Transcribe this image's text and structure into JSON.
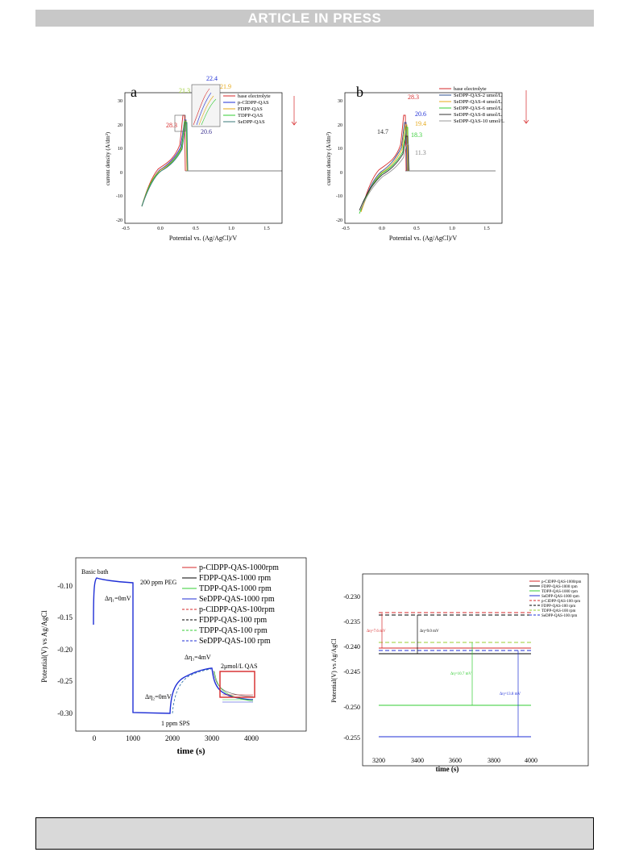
{
  "banner": "ARTICLE IN PRESS",
  "colors": {
    "red": "#d62728",
    "blue": "#1f2fd6",
    "black": "#000000",
    "green": "#33cc33",
    "gray": "#888888",
    "yellowgreen": "#9acd32",
    "orange": "#e6a817",
    "navy": "#2b4d8f",
    "teal": "#3a7a7a"
  },
  "panel_a": {
    "label": "a",
    "ylabel": "current density (A/dm²)",
    "xlabel": "Potential vs. (Ag/AgCl)/V",
    "xticks": [
      "-0.5",
      "0.0",
      "0.5",
      "1.0",
      "1.5"
    ],
    "yticks": [
      "30",
      "20",
      "10",
      "0",
      "-10",
      "-20"
    ],
    "legend": [
      "base electrolyte",
      "p-ClDPP-QAS",
      "FDPP-QAS",
      "TDPP-QAS",
      "SeDPP-QAS"
    ],
    "ann": [
      "28.3",
      "21.3",
      "22.4",
      "21.9",
      "20.6"
    ]
  },
  "panel_b": {
    "label": "b",
    "ylabel": "current density (A/dm²)",
    "xlabel": "Potential vs. (Ag/AgCl)/V",
    "xticks": [
      "-0.5",
      "0.0",
      "0.5",
      "1.0",
      "1.5"
    ],
    "yticks": [
      "30",
      "20",
      "10",
      "0",
      "-10",
      "-20"
    ],
    "legend": [
      "base electrolyte",
      "SeDPP-QAS-2 umol/L",
      "SeDPP-QAS-4 umol/L",
      "SeDPP-QAS-6 umol/L",
      "SeDPP-QAS-8 umol/L",
      "SeDPP-QAS-10 umol/L"
    ],
    "ann": [
      "28.3",
      "20.6",
      "19.4",
      "18.3",
      "14.7",
      "11.3"
    ]
  },
  "panel_c": {
    "ylabel": "Potential(V) vs Ag/AgCl",
    "xlabel": "time (s)",
    "xticks": [
      "0",
      "1000",
      "2000",
      "3000",
      "4000"
    ],
    "yticks": [
      "-0.10",
      "-0.15",
      "-0.20",
      "-0.25",
      "-0.30"
    ],
    "legend": [
      "p-ClDPP-QAS-1000rpm",
      "FDPP-QAS-1000 rpm",
      "TDPP-QAS-1000 rpm",
      "SeDPP-QAS-1000 rpm",
      "p-ClDPP-QAS-100rpm",
      "FDPP-QAS-100 rpm",
      "TDPP-QAS-100 rpm",
      "SeDPP-QAS-100 rpm"
    ],
    "ann": [
      "Basic bath",
      "200 ppm PEG",
      "Δη₁=0mV",
      "Δη₂=0mV",
      "1 ppm SPS",
      "Δη₃=4mV",
      "2μmol/L QAS"
    ]
  },
  "panel_d": {
    "ylabel": "Potential(V) vs Ag/AgCl",
    "xlabel": "time (s)",
    "xticks": [
      "3200",
      "3400",
      "3600",
      "3800",
      "4000"
    ],
    "yticks": [
      "-0.230",
      "-0.235",
      "-0.240",
      "-0.245",
      "-0.250",
      "-0.255"
    ],
    "legend": [
      "p-ClDPP-QAS-1000rpm",
      "FDPP-QAS-1000 rpm",
      "TDPP-QAS-1000 rpm",
      "SeDPP-QAS-1000 rpm",
      "p-ClDPP-QAS-100 rpm",
      "FDPP-QAS-100 rpm",
      "TDPP-QAS-100 rpm",
      "SeDPP-QAS-100 rpm"
    ],
    "ann": [
      "Δη=7.6 mV",
      "Δη=9.0 mV",
      "Δη=10.7 mV",
      "Δη=13.8 mV"
    ]
  }
}
